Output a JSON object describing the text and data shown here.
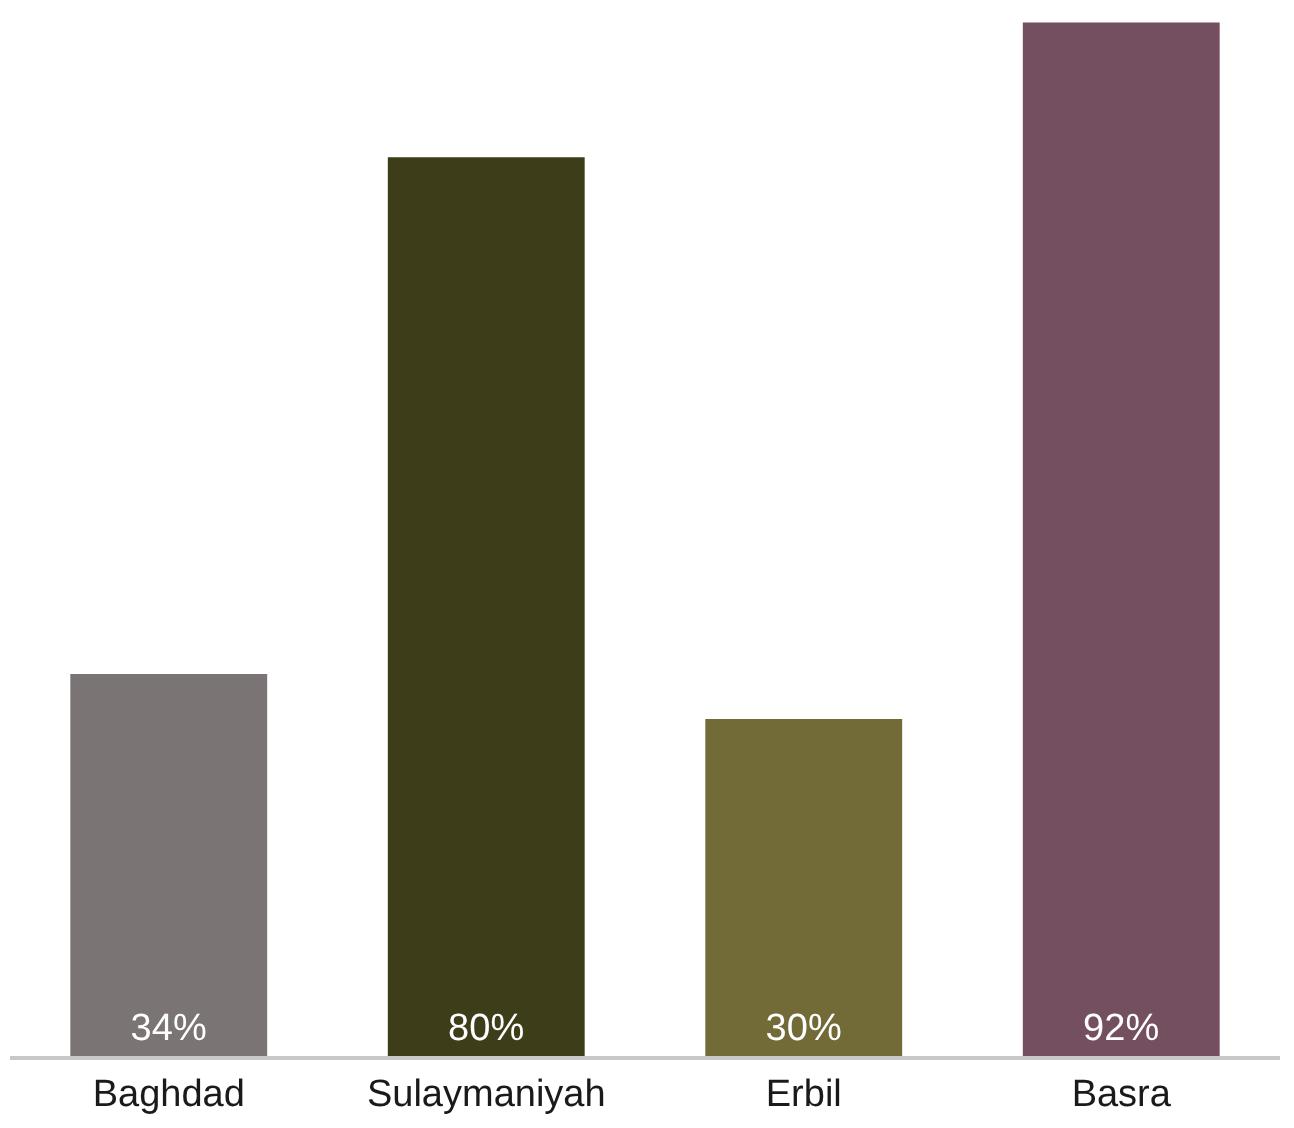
{
  "chart_data": {
    "type": "bar",
    "categories": [
      "Baghdad",
      "Sulaymaniyah",
      "Erbil",
      "Basra"
    ],
    "values": [
      34,
      80,
      30,
      92
    ],
    "colors": [
      "#7a7475",
      "#3d3d19",
      "#736b37",
      "#744f60"
    ],
    "value_labels": [
      "34%",
      "80%",
      "30%",
      "92%"
    ],
    "ylim": [
      0,
      94
    ],
    "tick_labels": "x"
  }
}
